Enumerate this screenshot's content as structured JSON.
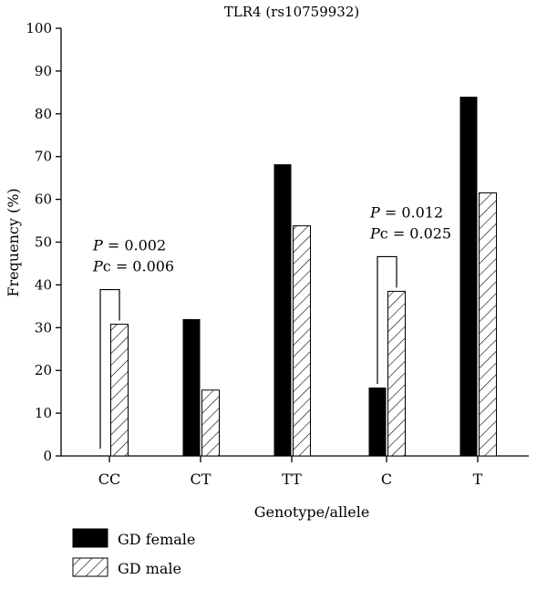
{
  "chart_data": {
    "type": "bar",
    "title": "TLR4 (rs10759932)",
    "xlabel": "Genotype/allele",
    "ylabel": "Frequency (%)",
    "ylim": [
      0,
      100
    ],
    "yticks": [
      0,
      10,
      20,
      30,
      40,
      50,
      60,
      70,
      80,
      90,
      100
    ],
    "categories": [
      "CC",
      "CT",
      "TT",
      "C",
      "T"
    ],
    "series": [
      {
        "name": "GD female",
        "values": [
          0,
          32,
          68.2,
          16,
          84
        ],
        "color": "#000000",
        "pattern": "solid"
      },
      {
        "name": "GD male",
        "values": [
          30.8,
          15.4,
          53.8,
          38.5,
          61.5
        ],
        "color": "#ffffff",
        "pattern": "hatched"
      }
    ],
    "annotations": [
      {
        "category": "CC",
        "line1_italic": "P",
        "line1_rest": " = 0.002",
        "line2_italic": "P",
        "line2_rest": "c = 0.006"
      },
      {
        "category": "C",
        "line1_italic": "P",
        "line1_rest": " = 0.012",
        "line2_italic": "P",
        "line2_rest": "c = 0.025"
      }
    ],
    "legend": "bottom-left",
    "grid": false
  }
}
